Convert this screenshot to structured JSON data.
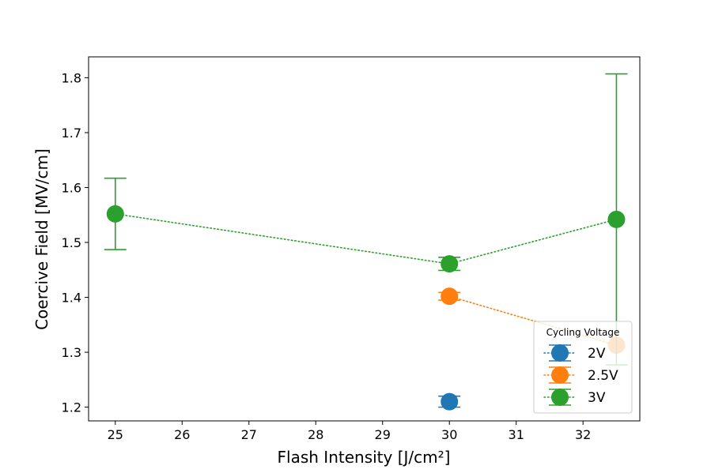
{
  "chart_data": {
    "type": "scatter",
    "xlabel": "Flash Intensity [J/cm²]",
    "ylabel": "Coercive Field [MV/cm]",
    "xlim": [
      24.6,
      32.85
    ],
    "ylim": [
      1.175,
      1.838
    ],
    "xticks": [
      25,
      26,
      27,
      28,
      29,
      30,
      31,
      32
    ],
    "yticks": [
      1.2,
      1.3,
      1.4,
      1.5,
      1.6,
      1.7,
      1.8
    ],
    "xtick_labels": [
      "25",
      "26",
      "27",
      "28",
      "29",
      "30",
      "31",
      "32"
    ],
    "ytick_labels": [
      "1.2",
      "1.3",
      "1.4",
      "1.5",
      "1.6",
      "1.7",
      "1.8"
    ],
    "grid": false,
    "legend_title": "Cycling Voltage",
    "legend_position": "lower-right",
    "series": [
      {
        "name": "2V",
        "color": "#1f77b4",
        "line_style": "dotted",
        "points": [
          {
            "x": 30,
            "y": 1.21,
            "err": 0.01
          }
        ]
      },
      {
        "name": "2.5V",
        "color": "#ff7f0e",
        "line_style": "dotted",
        "points": [
          {
            "x": 30,
            "y": 1.402,
            "err": 0.007
          },
          {
            "x": 32.5,
            "y": 1.313,
            "err": 0.0
          }
        ]
      },
      {
        "name": "3V",
        "color": "#2ca02c",
        "line_style": "dotted",
        "points": [
          {
            "x": 25,
            "y": 1.552,
            "err": 0.065
          },
          {
            "x": 30,
            "y": 1.461,
            "err": 0.012
          },
          {
            "x": 32.5,
            "y": 1.542,
            "err": 0.265
          }
        ]
      }
    ]
  }
}
